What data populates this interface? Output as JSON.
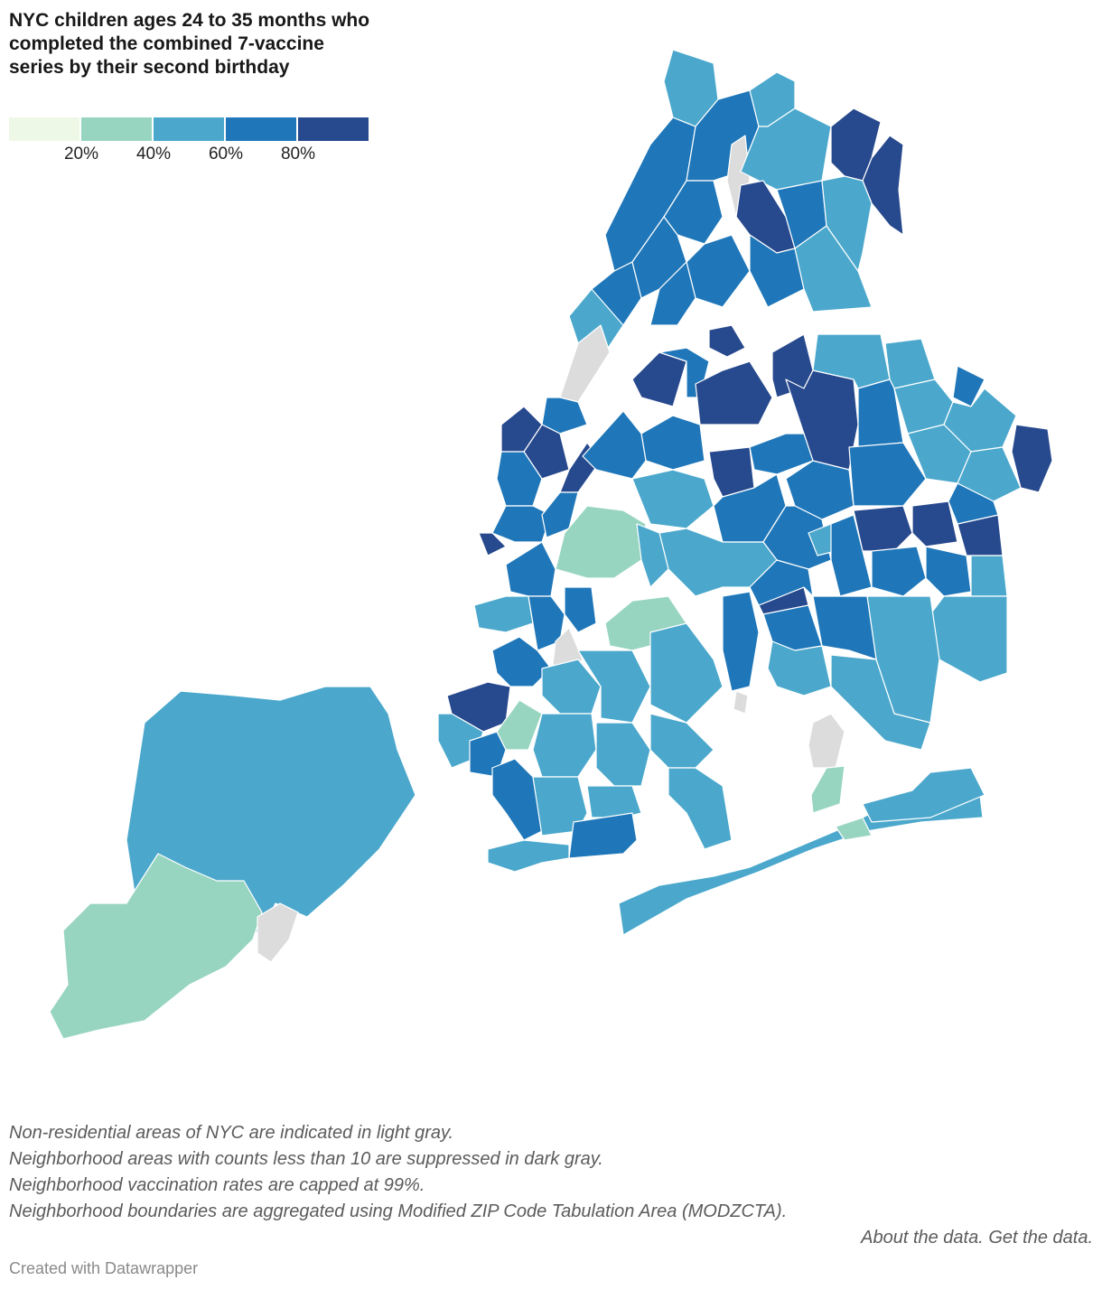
{
  "title": "NYC children ages 24 to 35 months who completed the combined 7-vaccine series by their second birthday",
  "legend": {
    "bins": [
      {
        "color": "#eef8e6"
      },
      {
        "color": "#98d5c1"
      },
      {
        "color": "#4ba8cc"
      },
      {
        "color": "#1f77b9"
      },
      {
        "color": "#27498d"
      }
    ],
    "ticks": [
      "20%",
      "40%",
      "60%",
      "80%"
    ]
  },
  "colors": {
    "bin_0_20": "#eef8e6",
    "bin_20_40": "#98d5c1",
    "bin_40_60": "#4ba8cc",
    "bin_60_80": "#1f77b9",
    "bin_80_100": "#27498d",
    "non_residential": "#dcdcdc"
  },
  "notes": [
    "Non-residential areas of NYC are indicated in light gray.",
    "Neighborhood areas with counts less than 10 are suppressed in dark gray.",
    "Neighborhood vaccination rates are capped at 99%.",
    "Neighborhood boundaries are aggregated using Modified ZIP Code Tabulation Area (MODZCTA)."
  ],
  "links": {
    "about": "About the data.",
    "get": "Get the data."
  },
  "credit": "Created with Datawrapper"
}
